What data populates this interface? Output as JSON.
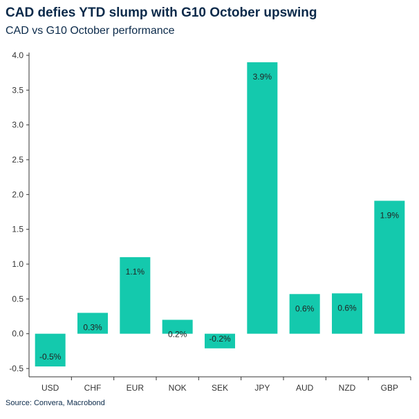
{
  "title": "CAD defies YTD slump with G10 October upswing",
  "subtitle": "CAD vs G10 October performance",
  "source": "Source: Convera, Macrobond",
  "colors": {
    "bar": "#14c9ad",
    "axis": "#333333",
    "text": "#0b2a4a"
  },
  "chart_data": {
    "type": "bar",
    "title": "CAD defies YTD slump with G10 October upswing",
    "subtitle": "CAD vs G10 October performance",
    "categories": [
      "USD",
      "CHF",
      "EUR",
      "NOK",
      "SEK",
      "JPY",
      "AUD",
      "NZD",
      "GBP"
    ],
    "values": [
      -0.47,
      0.3,
      1.1,
      0.2,
      -0.21,
      3.9,
      0.57,
      0.58,
      1.91
    ],
    "data_labels": [
      "-0.5%",
      "0.3%",
      "1.1%",
      "0.2%",
      "-0.2%",
      "3.9%",
      "0.6%",
      "0.6%",
      "1.9%"
    ],
    "ylim": [
      -0.5,
      4.0
    ],
    "yticks": [
      "4.0",
      "3.5",
      "3.0",
      "2.5",
      "2.0",
      "1.5",
      "1.0",
      "0.5",
      "0.0",
      "-0.5"
    ],
    "ytick_values": [
      4.0,
      3.5,
      3.0,
      2.5,
      2.0,
      1.5,
      1.0,
      0.5,
      0.0,
      -0.5
    ],
    "xlabel": "",
    "ylabel": "",
    "grid": false,
    "legend": "none"
  }
}
